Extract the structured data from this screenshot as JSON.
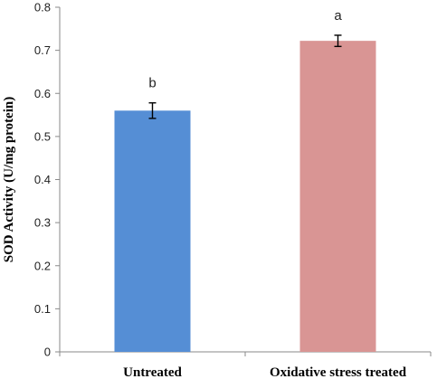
{
  "chart_data": {
    "type": "bar",
    "categories": [
      "Untreated",
      "Oxidative stress treated"
    ],
    "values": [
      0.56,
      0.722
    ],
    "errors": [
      0.018,
      0.013
    ],
    "bar_colors": [
      "#558ED5",
      "#D99594"
    ],
    "significance": [
      "b",
      "a"
    ],
    "xlabel": "",
    "ylabel": "SOD Activity (U/mg protein)",
    "ylim": [
      0,
      0.8
    ],
    "yticks": [
      "0",
      "0.1",
      "0.2",
      "0.3",
      "0.4",
      "0.5",
      "0.6",
      "0.7",
      "0.8"
    ],
    "grid": false,
    "legend": "none"
  }
}
